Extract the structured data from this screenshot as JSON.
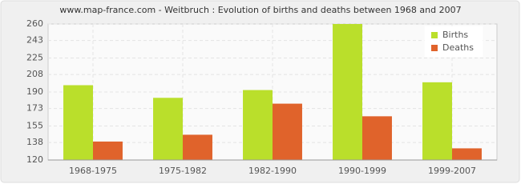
{
  "chart_data": {
    "type": "bar",
    "title": "www.map-france.com - Weitbruch : Evolution of births and deaths between 1968 and 2007",
    "categories": [
      "1968-1975",
      "1975-1982",
      "1982-1990",
      "1990-1999",
      "1999-2007"
    ],
    "series": [
      {
        "name": "Births",
        "color": "#badf2b",
        "values": [
          197,
          184,
          192,
          260,
          200
        ]
      },
      {
        "name": "Deaths",
        "color": "#e0632b",
        "values": [
          139,
          146,
          178,
          165,
          132
        ]
      }
    ],
    "ylim": [
      120,
      260
    ],
    "yticks": [
      120,
      138,
      155,
      173,
      190,
      208,
      225,
      243,
      260
    ],
    "grid": true,
    "legend": "top-right"
  }
}
